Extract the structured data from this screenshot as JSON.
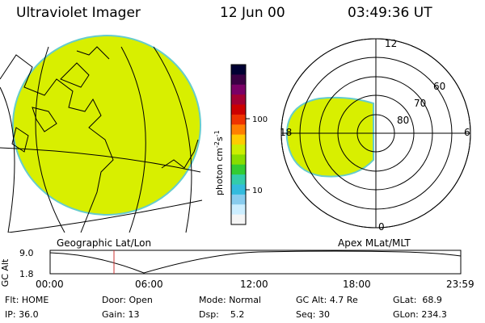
{
  "header": {
    "title": "Ultraviolet Imager",
    "date": "12 Jun 00",
    "time": "03:49:36 UT"
  },
  "geo_panel": {
    "label": "Geographic Lat/Lon"
  },
  "polar_panel": {
    "label": "Apex MLat/MLT",
    "mlt_labels": [
      "12",
      "18",
      "6",
      "0"
    ],
    "lat_labels": [
      "60",
      "70",
      "80"
    ]
  },
  "colorbar": {
    "unit": "photon cm",
    "unit_sup1": "-2",
    "unit_s": "s",
    "unit_sup2": "-1",
    "tick_labels": [
      "100",
      "10"
    ],
    "colors": [
      "#000033",
      "#3b0044",
      "#7a0066",
      "#a30033",
      "#cc0000",
      "#ee3300",
      "#ff7f00",
      "#ffcc00",
      "#ccee00",
      "#88dd00",
      "#33cc33",
      "#33ccaa",
      "#33bbdd",
      "#88ccee",
      "#cceeff",
      "#f5f5f5"
    ]
  },
  "altitude_plot": {
    "ylabel": "GC Alt",
    "y_ticks": [
      "9.0",
      "1.8"
    ],
    "x_ticks": [
      "00:00",
      "06:00",
      "12:00",
      "18:00",
      "23:59"
    ]
  },
  "info": {
    "flt_label": "Flt:",
    "flt_value": "HOME",
    "ip_label": "IP:",
    "ip_value": "36.0",
    "door_label": "Door:",
    "door_value": "Open",
    "gain_label": "Gain:",
    "gain_value": "13",
    "mode_label": "Mode:",
    "mode_value": "Normal",
    "dsp_label": "Dsp:",
    "dsp_value": "5.2",
    "gcalt_label": "GC Alt:",
    "gcalt_value": "4.7 Re",
    "seq_label": "Seq:",
    "seq_value": "30",
    "glat_label": "GLat:",
    "glat_value": "68.9",
    "glon_label": "GLon:",
    "glon_value": "234.3"
  },
  "colors": {
    "emission": "#d8ef00",
    "edge": "#66cccc",
    "marker": "#cc3333"
  }
}
